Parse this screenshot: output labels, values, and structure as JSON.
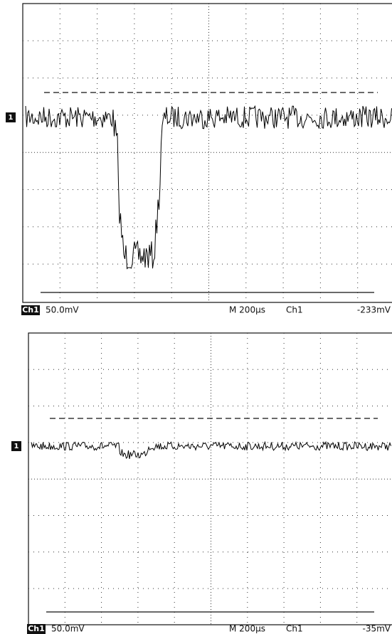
{
  "panels": [
    {
      "channel_marker": "1",
      "status": {
        "channel": "Ch1",
        "scale": "50.0mV",
        "timebase": "M 200µs",
        "trigger_source": "Ch1",
        "trigger_level": "-233mV"
      }
    },
    {
      "channel_marker": "1",
      "status": {
        "channel": "Ch1",
        "scale": "50.0mV",
        "timebase": "M 200µs",
        "trigger_source": "Ch1",
        "trigger_level": "-35mV"
      }
    }
  ]
}
